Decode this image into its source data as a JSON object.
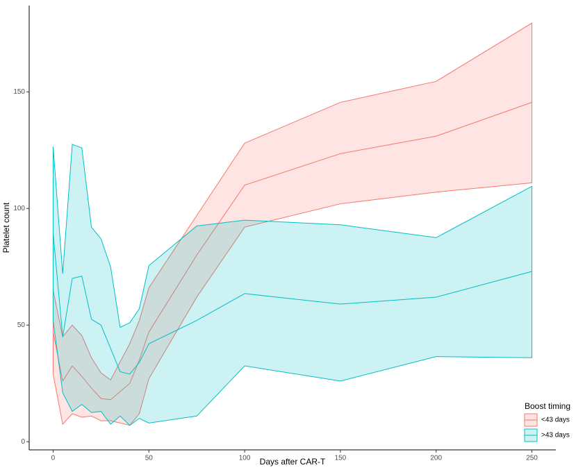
{
  "chart_data": {
    "type": "ribbon",
    "x_label": "Days after CAR-T",
    "y_label": "Platelet count",
    "legend_title": "Boost timing",
    "legend_position": "bottom-right",
    "xlim": [
      -12.5,
      262.5
    ],
    "ylim": [
      -3.5,
      187
    ],
    "xticks": [
      0,
      50,
      100,
      150,
      200,
      250
    ],
    "yticks": [
      0,
      50,
      100,
      150
    ],
    "grid": false,
    "series": [
      {
        "name": "<43 days",
        "color": "#F8766D",
        "x": [
          0,
          5,
          10,
          15,
          20,
          25,
          30,
          40,
          45,
          50,
          75,
          100,
          150,
          200,
          250
        ],
        "values": [
          47,
          26,
          32.5,
          28,
          23,
          18.5,
          18,
          25,
          35,
          47,
          80,
          110,
          123.5,
          131,
          145.5
        ],
        "lower": [
          29,
          7.5,
          12,
          10.5,
          11,
          9,
          9,
          7,
          12,
          27,
          62,
          92,
          102,
          107,
          111
        ],
        "upper": [
          65,
          45,
          50,
          45.5,
          36,
          29.5,
          26.5,
          42,
          52,
          66,
          97,
          128,
          145.5,
          154.5,
          179.5
        ]
      },
      {
        "name": ">43 days",
        "color": "#00BFC4",
        "x": [
          0,
          5,
          10,
          15,
          20,
          25,
          30,
          35,
          40,
          45,
          50,
          75,
          100,
          150,
          200,
          250
        ],
        "values": [
          89.5,
          45,
          70,
          71,
          52.5,
          50,
          40,
          30,
          29,
          34,
          42,
          52,
          63.5,
          59,
          62,
          73
        ],
        "lower": [
          52,
          21,
          13,
          16,
          12.5,
          13,
          7.5,
          11,
          7,
          10,
          8,
          11,
          32.5,
          26,
          36.5,
          36
        ],
        "upper": [
          126.5,
          72,
          127.5,
          126,
          92,
          87,
          75,
          49,
          51,
          57,
          75.5,
          92.5,
          95,
          93,
          87.5,
          109.5
        ]
      }
    ]
  }
}
